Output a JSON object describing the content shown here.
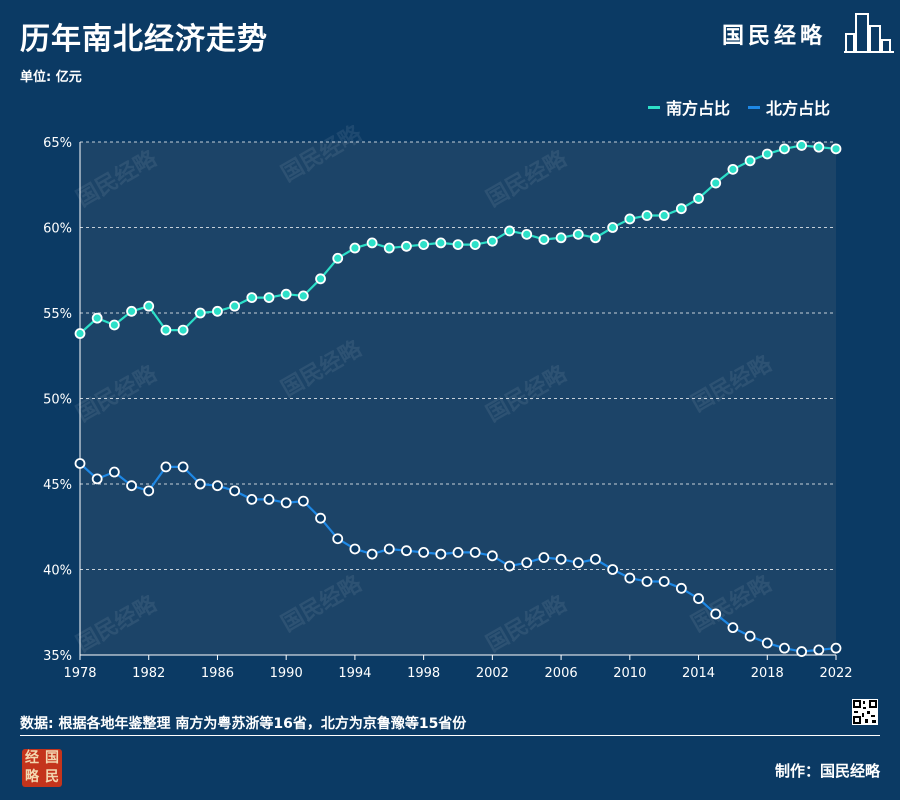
{
  "header": {
    "title": "历年南北经济走势",
    "unit": "单位: 亿元",
    "brand": "国民经略"
  },
  "watermark_text": "国民经略",
  "colors": {
    "background": "#0b3a64",
    "plot_bg": "#1c4468",
    "south": "#2de0c8",
    "north": "#1e88e5"
  },
  "chart_data": {
    "type": "line",
    "x": [
      1978,
      1979,
      1980,
      1981,
      1982,
      1983,
      1984,
      1985,
      1986,
      1987,
      1988,
      1989,
      1990,
      1991,
      1992,
      1993,
      1994,
      1995,
      1996,
      1997,
      1998,
      1999,
      2000,
      2001,
      2002,
      2003,
      2004,
      2005,
      2006,
      2007,
      2008,
      2009,
      2010,
      2011,
      2012,
      2013,
      2014,
      2015,
      2016,
      2017,
      2018,
      2019,
      2020,
      2021,
      2022
    ],
    "x_ticks": [
      "1978",
      "1982",
      "1986",
      "1990",
      "1994",
      "1998",
      "2002",
      "2006",
      "2010",
      "2014",
      "2018",
      "2022"
    ],
    "y_ticks": [
      "35%",
      "40%",
      "45%",
      "50%",
      "55%",
      "60%",
      "65%"
    ],
    "ylim": [
      35,
      65
    ],
    "grid": "horizontal dashed",
    "legend_position": "top-right",
    "series": [
      {
        "name": "南方占比",
        "values": [
          53.8,
          54.7,
          54.3,
          55.1,
          55.4,
          54.0,
          54.0,
          55.0,
          55.1,
          55.4,
          55.9,
          55.9,
          56.1,
          56.0,
          57.0,
          58.2,
          58.8,
          59.1,
          58.8,
          58.9,
          59.0,
          59.1,
          59.0,
          59.0,
          59.2,
          59.8,
          59.6,
          59.3,
          59.4,
          59.6,
          59.4,
          60.0,
          60.5,
          60.7,
          60.7,
          61.1,
          61.7,
          62.6,
          63.4,
          63.9,
          64.3,
          64.6,
          64.8,
          64.7,
          64.6
        ]
      },
      {
        "name": "北方占比",
        "values": [
          46.2,
          45.3,
          45.7,
          44.9,
          44.6,
          46.0,
          46.0,
          45.0,
          44.9,
          44.6,
          44.1,
          44.1,
          43.9,
          44.0,
          43.0,
          41.8,
          41.2,
          40.9,
          41.2,
          41.1,
          41.0,
          40.9,
          41.0,
          41.0,
          40.8,
          40.2,
          40.4,
          40.7,
          40.6,
          40.4,
          40.6,
          40.0,
          39.5,
          39.3,
          39.3,
          38.9,
          38.3,
          37.4,
          36.6,
          36.1,
          35.7,
          35.4,
          35.2,
          35.3,
          35.4
        ]
      }
    ]
  },
  "footer": {
    "source": "数据: 根据各地年鉴整理 南方为粤苏浙等16省，北方为京鲁豫等15省份",
    "credit": "制作：国民经略",
    "stamp": [
      "经",
      "国",
      "略",
      "民"
    ]
  }
}
